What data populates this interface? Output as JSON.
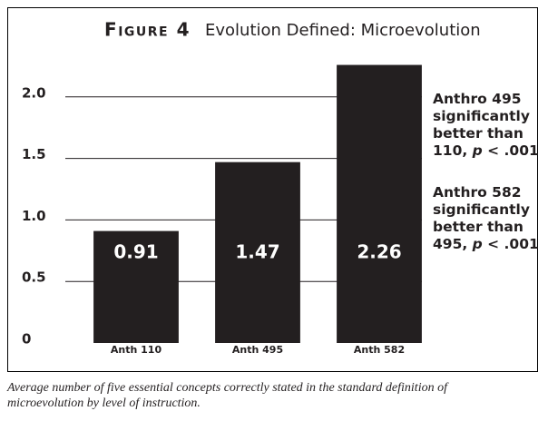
{
  "chart_data": {
    "type": "bar",
    "figure_label": "Figure 4",
    "title": "Evolution Defined: Microevolution",
    "categories": [
      "Anth 110",
      "Anth 495",
      "Anth 582"
    ],
    "values": [
      0.91,
      1.47,
      2.26
    ],
    "color": "#231f20",
    "ylim": [
      0,
      2.5
    ],
    "yticks": [
      0,
      0.5,
      {
        "value": 1,
        "label": "1.0"
      },
      1.5,
      {
        "value": 2,
        "label": "2.0"
      }
    ],
    "grid": true,
    "annotations": [
      [
        "Anthro 495 significantly better than 110, ",
        "p",
        " < .001"
      ],
      [
        "Anthro 582 significantly better than 495, ",
        "p",
        " < .001"
      ]
    ],
    "caption": "Average number of five essential concepts correctly stated in the standard definition of microevolution by level of instruction."
  }
}
